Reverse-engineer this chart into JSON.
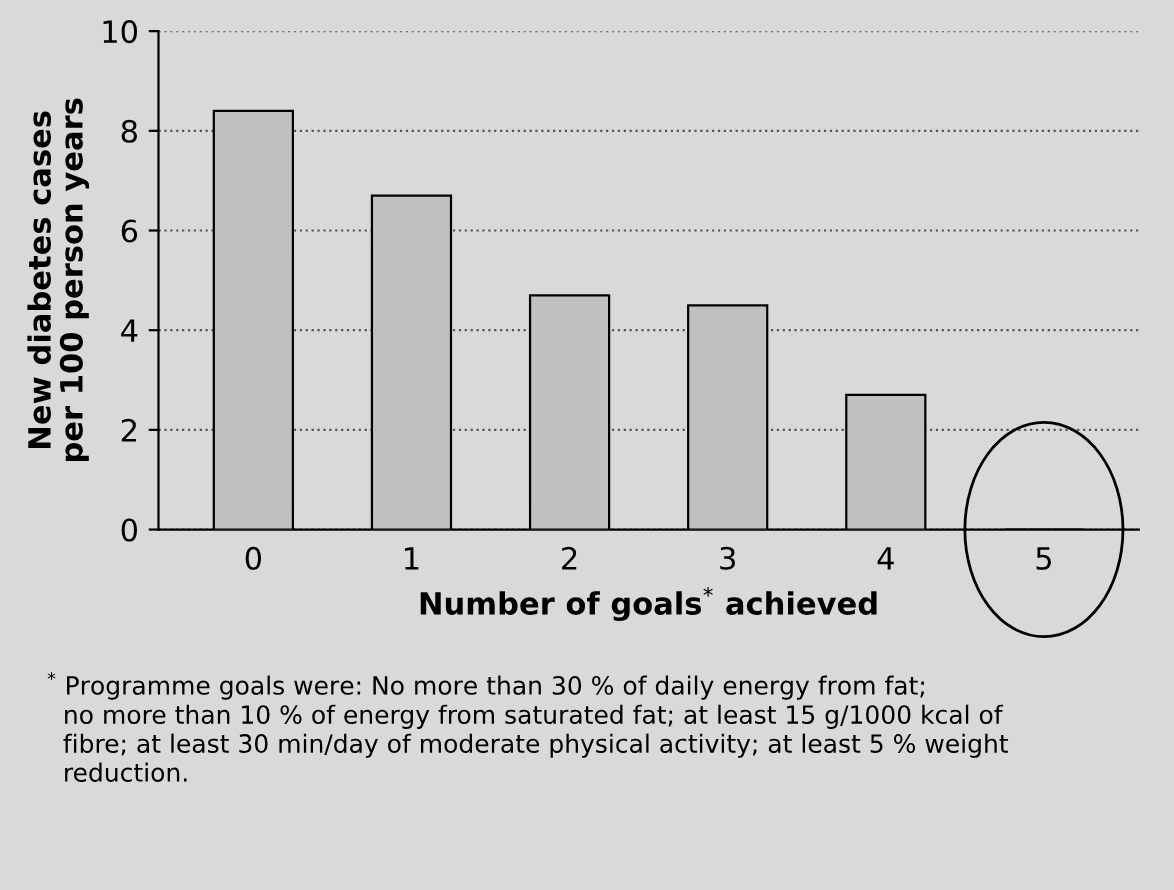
{
  "chart_data": {
    "type": "bar",
    "categories": [
      "0",
      "1",
      "2",
      "3",
      "4",
      "5"
    ],
    "values": [
      8.4,
      6.7,
      4.7,
      4.5,
      2.7,
      0
    ],
    "color": "#c0c0c0",
    "xlabel": "Number of goals$^{*}$ achieved",
    "ylabel": "New diabetes cases\nper 100 person years",
    "ylim": [
      0,
      10
    ],
    "yticks": [
      0,
      2,
      4,
      6,
      8,
      10
    ],
    "grid": "y",
    "annotations": [
      "$^{*}$ Programme goals were: No more than 30 % of daily energy from fat;\n  no more than 10 % of energy from saturated fat; at least 15 g/1000 kcal of\n  fibre; at least 30 min/day of moderate physical activity; at least 5 % weight\n  reduction."
    ]
  }
}
